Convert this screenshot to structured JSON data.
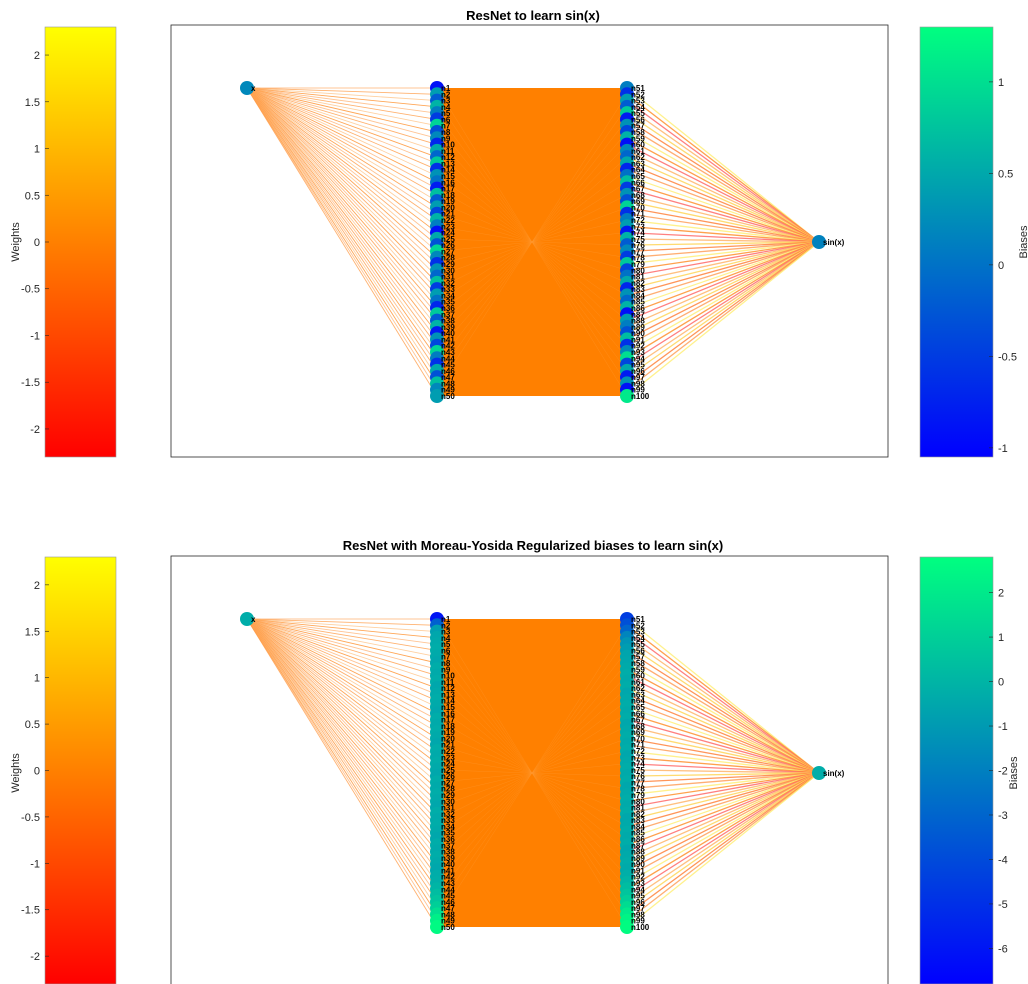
{
  "panels": [
    {
      "title": "ResNet to learn sin(x)",
      "weights_colorbar": {
        "label": "Weights",
        "ticks": [
          "2",
          "1.5",
          "1",
          "0.5",
          "0",
          "-0.5",
          "-1",
          "-1.5",
          "-2"
        ],
        "tick_values": [
          2,
          1.5,
          1,
          0.5,
          0,
          -0.5,
          -1,
          -1.5,
          -2
        ],
        "range": [
          -2.3,
          2.3
        ],
        "colormap": [
          "#ff0000",
          "#ff8000",
          "#ffff00"
        ]
      },
      "biases_colorbar": {
        "label": "Biases",
        "ticks": [
          "1",
          "0.5",
          "0",
          "-0.5",
          "-1"
        ],
        "tick_values": [
          1,
          0.5,
          0,
          -0.5,
          -1
        ],
        "range": [
          -1.05,
          1.3
        ],
        "colormap": [
          "#0000ff",
          "#00ff80"
        ]
      },
      "input_node": {
        "label": "x",
        "bias": 0.2
      },
      "output_node": {
        "label": "sin(x)",
        "bias": 0.15
      },
      "hidden_layer_1": {
        "labels": [
          "n1",
          "n2",
          "n3",
          "n4",
          "n5",
          "n6",
          "n7",
          "n8",
          "n9",
          "n10",
          "n11",
          "n12",
          "n13",
          "n14",
          "n15",
          "n16",
          "n17",
          "n18",
          "n19",
          "n20",
          "n21",
          "n22",
          "n23",
          "n24",
          "n25",
          "n26",
          "n27",
          "n28",
          "n29",
          "n30",
          "n31",
          "n32",
          "n33",
          "n34",
          "n35",
          "n36",
          "n37",
          "n38",
          "n39",
          "n40",
          "n41",
          "n42",
          "n43",
          "n44",
          "n45",
          "n46",
          "n47",
          "n48",
          "n49",
          "n50"
        ],
        "biases": [
          -0.9,
          0.4,
          -0.2,
          0.6,
          0.1,
          -0.5,
          0.9,
          -0.3,
          0.2,
          -0.7,
          0.5,
          -0.1,
          0.8,
          -0.6,
          0.3,
          0.0,
          -0.8,
          0.7,
          -0.2,
          0.4,
          -0.4,
          0.6,
          0.1,
          -0.9,
          0.5,
          -0.3,
          0.9,
          0.2,
          -0.6,
          0.3,
          -0.1,
          0.7,
          -0.5,
          0.4,
          0.0,
          -0.7,
          0.8,
          -0.2,
          0.6,
          -0.8,
          0.3,
          -0.4,
          0.9,
          0.1,
          -0.6,
          0.5,
          -0.3,
          0.7,
          0.2,
          0.4
        ]
      },
      "hidden_layer_2": {
        "labels": [
          "n51",
          "n52",
          "n53",
          "n54",
          "n55",
          "n56",
          "n57",
          "n58",
          "n59",
          "n60",
          "n61",
          "n62",
          "n63",
          "n64",
          "n65",
          "n66",
          "n67",
          "n68",
          "n69",
          "n70",
          "n71",
          "n72",
          "n73",
          "n74",
          "n75",
          "n76",
          "n77",
          "n78",
          "n79",
          "n80",
          "n81",
          "n82",
          "n83",
          "n84",
          "n85",
          "n86",
          "n87",
          "n88",
          "n89",
          "n90",
          "n91",
          "n92",
          "n93",
          "n94",
          "n95",
          "n96",
          "n97",
          "n98",
          "n99",
          "n100"
        ],
        "biases": [
          0.1,
          -0.6,
          0.4,
          -0.2,
          0.8,
          -0.8,
          0.3,
          -0.4,
          0.6,
          -0.9,
          0.2,
          -0.1,
          0.5,
          -0.7,
          0.0,
          0.7,
          -0.5,
          0.3,
          -0.3,
          0.9,
          -0.6,
          0.1,
          0.4,
          -0.8,
          0.6,
          -0.2,
          0.2,
          -0.5,
          0.8,
          -0.4,
          0.0,
          0.5,
          -0.7,
          0.3,
          -0.1,
          0.6,
          -0.9,
          0.4,
          0.1,
          -0.3,
          0.7,
          -0.6,
          0.2,
          1.0,
          -0.4,
          0.5,
          -0.8,
          0.3,
          -0.9,
          1.1
        ]
      }
    },
    {
      "title": "ResNet with Moreau-Yosida Regularized biases to learn sin(x)",
      "weights_colorbar": {
        "label": "Weights",
        "ticks": [
          "2",
          "1.5",
          "1",
          "0.5",
          "0",
          "-0.5",
          "-1",
          "-1.5",
          "-2"
        ],
        "tick_values": [
          2,
          1.5,
          1,
          0.5,
          0,
          -0.5,
          -1,
          -1.5,
          -2
        ],
        "range": [
          -2.3,
          2.3
        ],
        "colormap": [
          "#ff0000",
          "#ff8000",
          "#ffff00"
        ]
      },
      "biases_colorbar": {
        "label": "Biases",
        "ticks": [
          "2",
          "1",
          "0",
          "-1",
          "-2",
          "-3",
          "-4",
          "-5",
          "-6"
        ],
        "tick_values": [
          2,
          1,
          0,
          -1,
          -2,
          -3,
          -4,
          -5,
          -6
        ],
        "range": [
          -6.8,
          2.8
        ],
        "colormap": [
          "#0000ff",
          "#00ff80"
        ]
      },
      "input_node": {
        "label": "x",
        "bias": -0.3
      },
      "output_node": {
        "label": "sin(x)",
        "bias": -0.3
      },
      "hidden_layer_1": {
        "labels": [
          "n1",
          "n2",
          "n3",
          "n4",
          "n5",
          "n6",
          "n7",
          "n8",
          "n9",
          "n10",
          "n11",
          "n12",
          "n13",
          "n14",
          "n15",
          "n16",
          "n17",
          "n18",
          "n19",
          "n20",
          "n21",
          "n22",
          "n23",
          "n24",
          "n25",
          "n26",
          "n27",
          "n28",
          "n29",
          "n30",
          "n31",
          "n32",
          "n33",
          "n34",
          "n35",
          "n36",
          "n37",
          "n38",
          "n39",
          "n40",
          "n41",
          "n42",
          "n43",
          "n44",
          "n45",
          "n46",
          "n47",
          "n48",
          "n49",
          "n50"
        ],
        "biases": [
          -6.0,
          -3.2,
          -0.8,
          -0.5,
          -0.4,
          -0.3,
          -0.4,
          -0.5,
          -0.3,
          -0.4,
          -0.3,
          -0.5,
          -0.4,
          -0.3,
          -0.4,
          -0.5,
          -0.3,
          -0.4,
          -0.3,
          -0.4,
          -0.5,
          -0.3,
          -0.4,
          -0.3,
          -0.4,
          -0.5,
          -0.3,
          -0.4,
          -0.3,
          -0.4,
          -0.5,
          -0.3,
          -0.4,
          -0.3,
          -0.4,
          -0.5,
          -0.3,
          -0.4,
          -0.3,
          -0.4,
          -0.5,
          -0.3,
          -0.2,
          0.0,
          0.3,
          0.6,
          1.0,
          1.6,
          2.2,
          2.6
        ]
      },
      "hidden_layer_2": {
        "labels": [
          "n51",
          "n52",
          "n53",
          "n54",
          "n55",
          "n56",
          "n57",
          "n58",
          "n59",
          "n60",
          "n61",
          "n62",
          "n63",
          "n64",
          "n65",
          "n66",
          "n67",
          "n68",
          "n69",
          "n70",
          "n71",
          "n72",
          "n73",
          "n74",
          "n75",
          "n76",
          "n77",
          "n78",
          "n79",
          "n80",
          "n81",
          "n82",
          "n83",
          "n84",
          "n85",
          "n86",
          "n87",
          "n88",
          "n89",
          "n90",
          "n91",
          "n92",
          "n93",
          "n94",
          "n95",
          "n96",
          "n97",
          "n98",
          "n99",
          "n100"
        ],
        "biases": [
          -4.5,
          -3.8,
          -3.0,
          -1.8,
          -1.2,
          -0.9,
          -0.6,
          -0.5,
          -0.4,
          -0.3,
          -0.4,
          -0.3,
          -0.5,
          -0.4,
          -0.3,
          -0.4,
          -0.3,
          -0.5,
          -0.4,
          -0.3,
          -0.4,
          -0.3,
          -0.5,
          -0.4,
          -0.3,
          -0.4,
          -0.3,
          -0.5,
          -0.4,
          -0.3,
          -0.4,
          -0.3,
          -0.5,
          -0.4,
          -0.3,
          -0.4,
          -0.3,
          -0.5,
          -0.4,
          -0.3,
          -0.4,
          -0.2,
          0.0,
          0.3,
          0.6,
          1.0,
          1.5,
          2.0,
          2.4,
          2.7
        ]
      }
    }
  ]
}
